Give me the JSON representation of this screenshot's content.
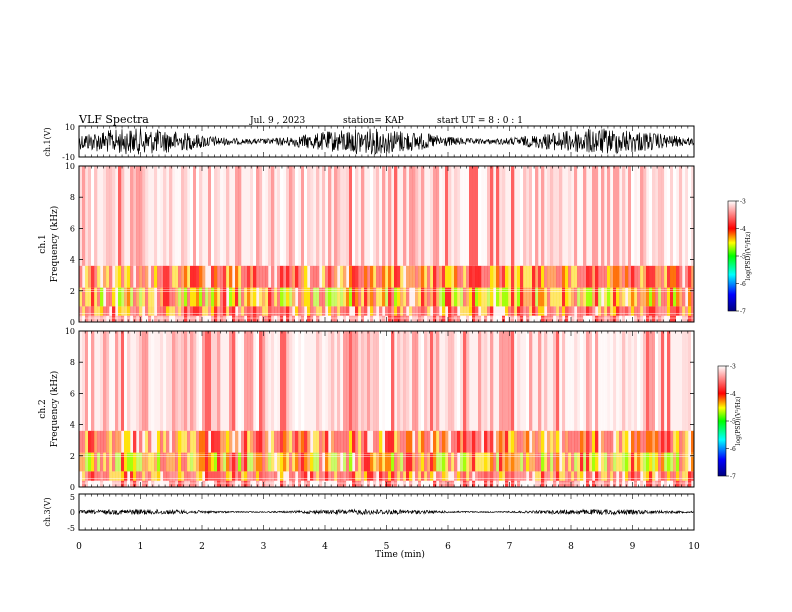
{
  "header": {
    "title": "VLF Spectra",
    "date": "Jul. 9 , 2023",
    "station": "station= KAP",
    "start": "start UT = 8 : 0 : 1"
  },
  "chart_data": [
    {
      "type": "line",
      "name": "ch1-waveform",
      "ylabel": "ch.1(V)",
      "ylim": [
        -10,
        10
      ],
      "ytick_labels": [
        "10",
        "-10"
      ],
      "xlim": [
        0,
        10
      ]
    },
    {
      "type": "heatmap",
      "name": "ch1-spectrogram",
      "ylabel": "ch.1 Frequency (kHz)",
      "ylabel_line1": "ch.1",
      "ylabel_line2": "Frequency (kHz)",
      "ylim": [
        0,
        10
      ],
      "yticks": [
        0,
        2,
        4,
        6,
        8,
        10
      ],
      "ytick_labels": [
        "0",
        "2",
        "4",
        "6",
        "8",
        "10"
      ],
      "xlim": [
        0,
        10
      ],
      "colorbar": {
        "label": "log(PSD)(V²/Hz)",
        "range": [
          -7,
          -3
        ],
        "tick_labels": [
          "-3",
          "-4",
          "-5",
          "-6",
          "-7"
        ]
      }
    },
    {
      "type": "heatmap",
      "name": "ch2-spectrogram",
      "ylabel": "ch.2 Frequency (kHz)",
      "ylabel_line1": "ch.2",
      "ylabel_line2": "Frequency (kHz)",
      "ylim": [
        0,
        10
      ],
      "yticks": [
        0,
        2,
        4,
        6,
        8,
        10
      ],
      "ytick_labels": [
        "0",
        "2",
        "4",
        "6",
        "8",
        "10"
      ],
      "xlim": [
        0,
        10
      ],
      "colorbar": {
        "label": "log(PSD)(V²/Hz)",
        "range": [
          -7,
          -3
        ],
        "tick_labels": [
          "-3",
          "-4",
          "-5",
          "-6",
          "-7"
        ]
      }
    },
    {
      "type": "line",
      "name": "ch3-waveform",
      "ylabel": "ch.3(V)",
      "ylim": [
        -5,
        5
      ],
      "ytick_labels": [
        "5",
        "0",
        "-5"
      ],
      "xlim": [
        0,
        10
      ],
      "xlabel": "Time (min)",
      "xtick_labels": [
        "0",
        "1",
        "2",
        "3",
        "4",
        "5",
        "6",
        "7",
        "8",
        "9",
        "10"
      ]
    }
  ],
  "colors": {
    "colormap": [
      "#00007f",
      "#0000ff",
      "#00ffff",
      "#00ff00",
      "#ffff00",
      "#ff0000",
      "#ffffff"
    ]
  }
}
